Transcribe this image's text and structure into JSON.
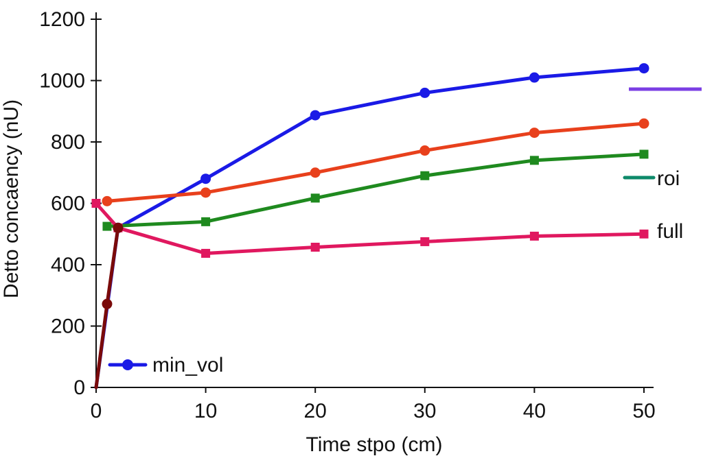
{
  "chart_data": {
    "type": "line",
    "title": "",
    "xlabel": "Time stpo (cm)",
    "ylabel": "Detto concaency (nU)",
    "xlim": [
      0,
      50
    ],
    "ylim": [
      0,
      1200
    ],
    "xticks": [
      0,
      10,
      20,
      30,
      40,
      50
    ],
    "yticks": [
      0,
      200,
      400,
      600,
      800,
      1000,
      1200
    ],
    "series": [
      {
        "name": "min_vol",
        "color": "#1a1ae6",
        "marker": "circle",
        "x": [
          0,
          2,
          10,
          20,
          30,
          40,
          50
        ],
        "y": [
          0,
          520,
          680,
          887,
          960,
          1010,
          1040
        ]
      },
      {
        "name": "",
        "color": "#e8401c",
        "marker": "circle",
        "x": [
          1,
          10,
          20,
          30,
          40,
          50
        ],
        "y": [
          607,
          635,
          700,
          772,
          830,
          860
        ]
      },
      {
        "name": "",
        "color": "#1f8a1f",
        "marker": "square",
        "x": [
          1,
          10,
          20,
          30,
          40,
          50
        ],
        "y": [
          525,
          540,
          617,
          690,
          740,
          760
        ]
      },
      {
        "name": "full",
        "color": "#e0185f",
        "marker": "square",
        "x": [
          0,
          2,
          10,
          20,
          30,
          40,
          50
        ],
        "y": [
          600,
          520,
          437,
          457,
          475,
          493,
          500
        ]
      },
      {
        "name": "",
        "color": "#7a0a0a",
        "marker": "circle",
        "x": [
          0,
          1,
          2
        ],
        "y": [
          0,
          272,
          520
        ]
      }
    ],
    "legend": [
      {
        "label": "min_vol",
        "color": "#1a1ae6",
        "marker": "circle"
      },
      {
        "label": "",
        "color": "#7b3fe4",
        "marker": "none"
      },
      {
        "label": "roi",
        "color": "#0e8a6a",
        "marker": "none"
      },
      {
        "label": "full",
        "color": "#e0185f",
        "marker": "square"
      }
    ]
  }
}
